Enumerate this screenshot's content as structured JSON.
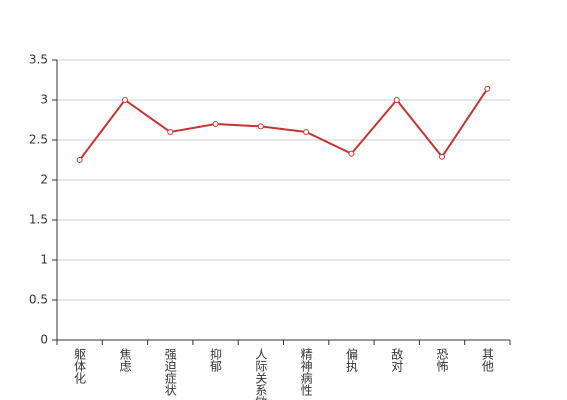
{
  "chart_data": {
    "type": "line",
    "categories": [
      "躯体化",
      "焦虑",
      "强迫症状",
      "抑郁",
      "人际关系敏感",
      "精神病性",
      "偏执",
      "敌对",
      "恐怖",
      "其他"
    ],
    "series": [
      {
        "color": "#c23531",
        "values": [
          2.25,
          3.0,
          2.6,
          2.7,
          2.67,
          2.6,
          2.33,
          3.0,
          2.29,
          3.14
        ]
      }
    ],
    "ylim": [
      0,
      3.5
    ],
    "yticks": [
      0,
      0.5,
      1,
      1.5,
      2,
      2.5,
      3,
      3.5
    ],
    "grid": true
  }
}
